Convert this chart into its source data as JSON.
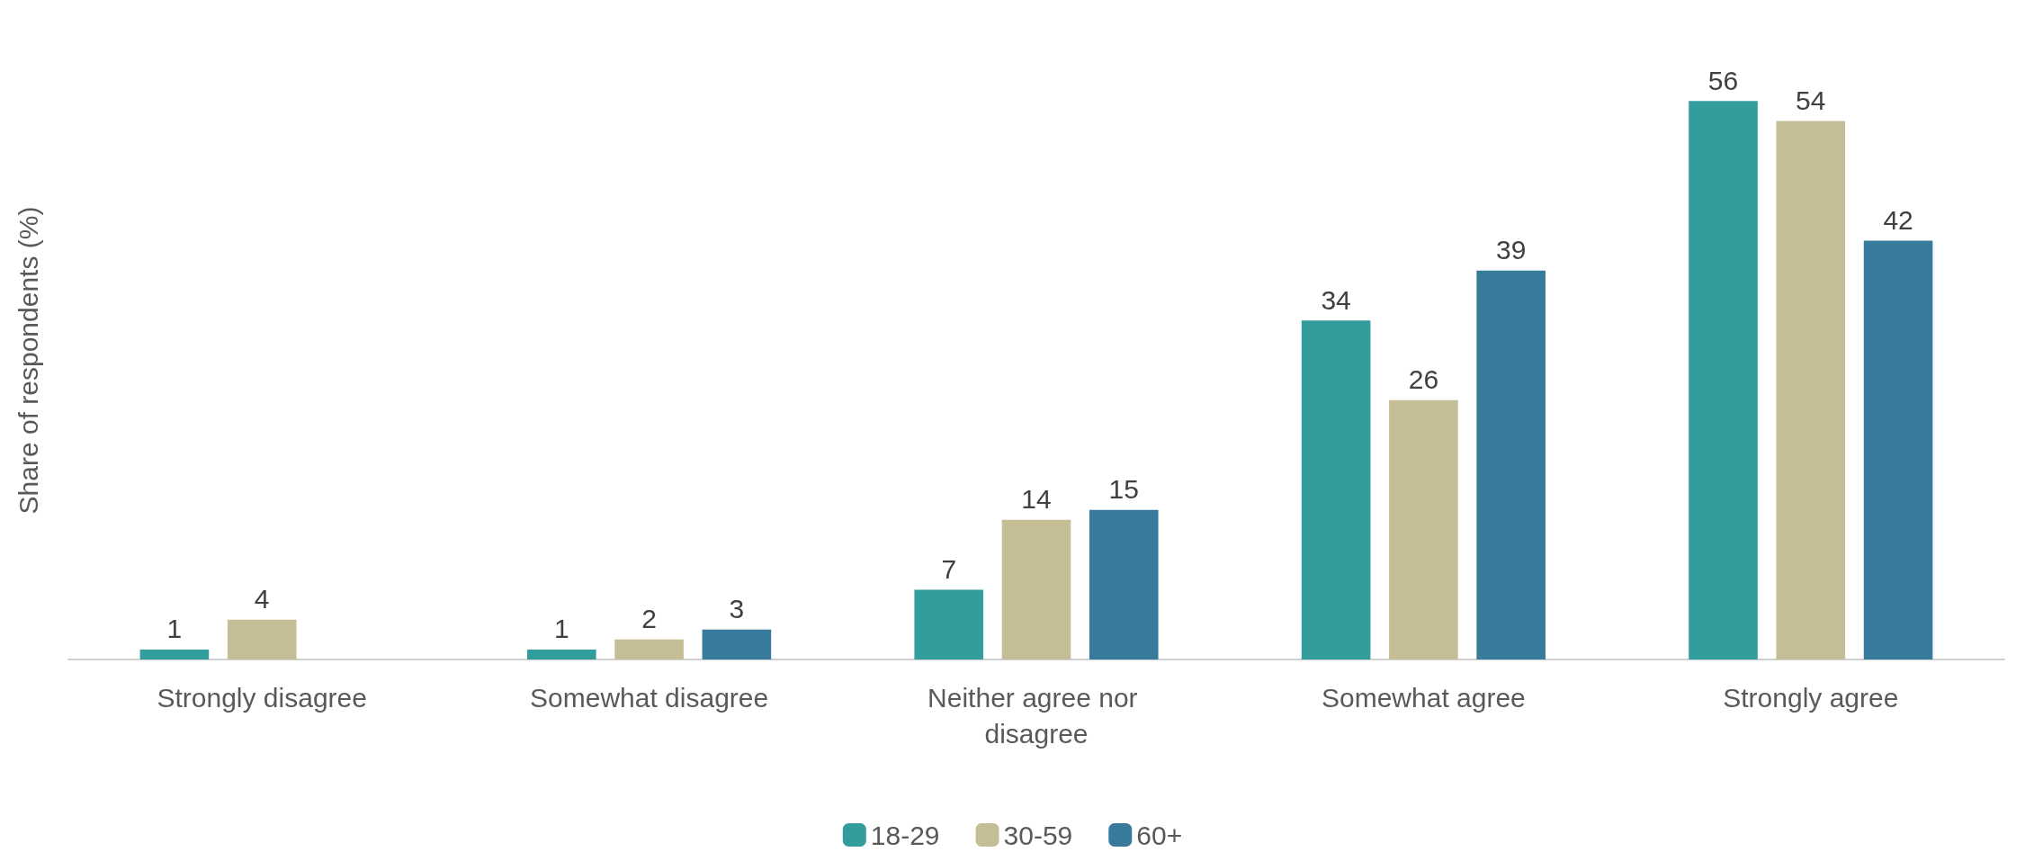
{
  "chart_data": {
    "type": "bar",
    "ylabel": "Share of respondents (%)",
    "categories": [
      "Strongly disagree",
      "Somewhat disagree",
      "Neither agree nor disagree",
      "Somewhat agree",
      "Strongly agree"
    ],
    "series": [
      {
        "name": "18-29",
        "color": "#339c9c",
        "values": [
          1,
          1,
          7,
          34,
          56
        ]
      },
      {
        "name": "30-59",
        "color": "#c5bd96",
        "values": [
          4,
          2,
          14,
          26,
          54
        ]
      },
      {
        "name": "60+",
        "color": "#387a9b",
        "values": [
          null,
          3,
          15,
          39,
          42
        ]
      }
    ],
    "data_labels": true,
    "grid": false,
    "legend": "bottom"
  }
}
